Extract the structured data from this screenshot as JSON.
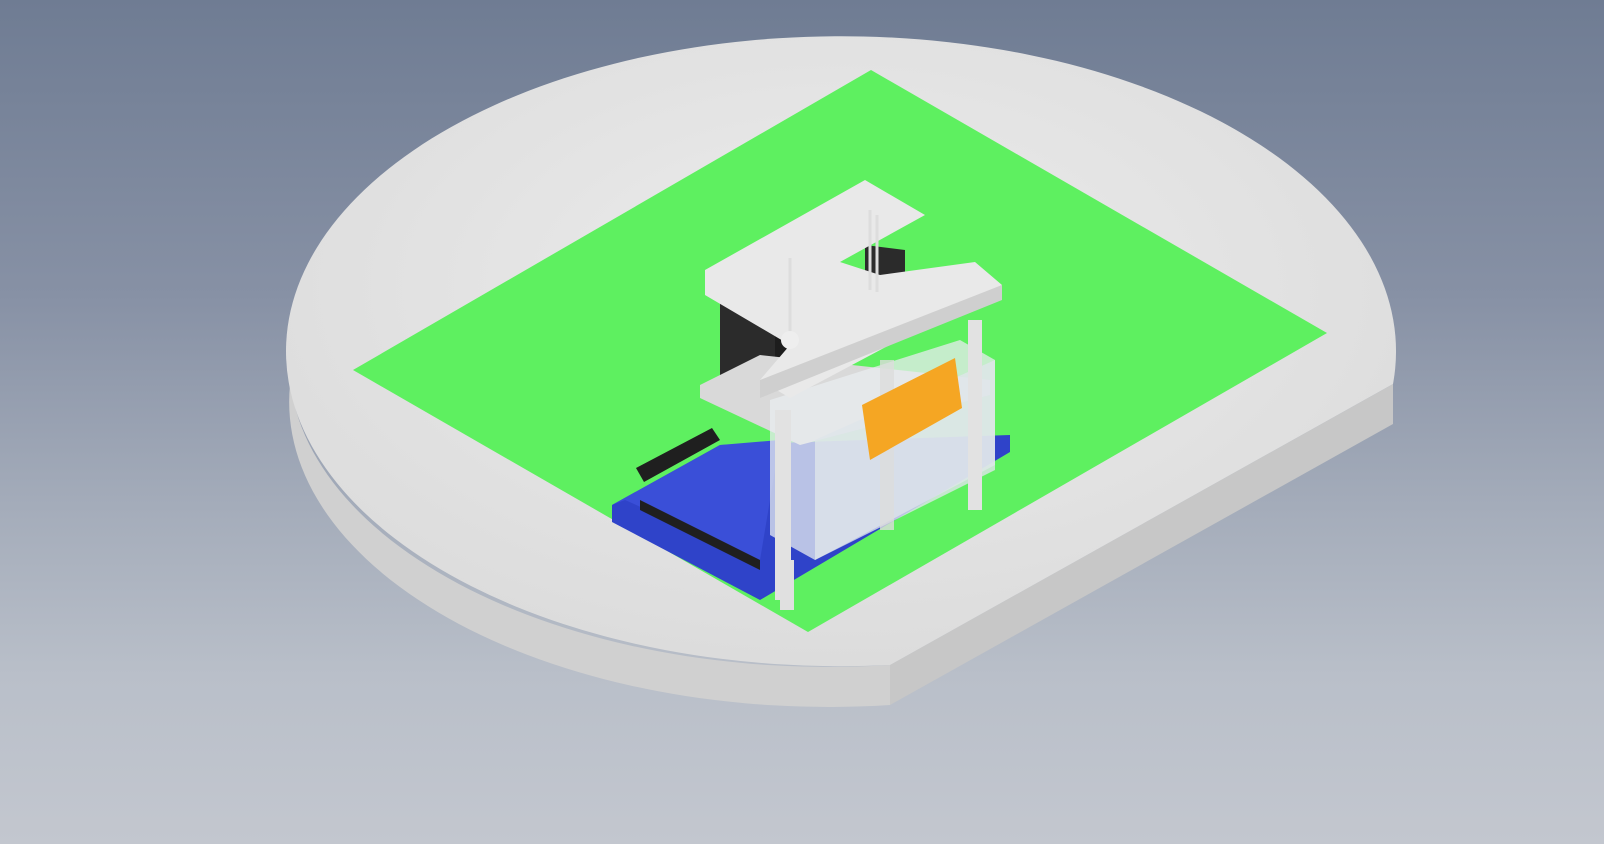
{
  "scene": {
    "background_top": "#6f7c93",
    "background_bottom": "#c3c7cf",
    "turntable_color": "#e3e3e3",
    "turntable_edge_color": "#cfcfcf",
    "mat_color": "#5ef060",
    "base_board_color": "#2f43c9",
    "frame_color": "#e6e6e6",
    "sensor_board_color": "#f5a623",
    "motor_color": "#2b2b2b"
  },
  "icons": {
    "turntable": "cylinder-platform-icon",
    "mat": "green-mat-icon",
    "assembly": "robot-assembly-icon"
  }
}
